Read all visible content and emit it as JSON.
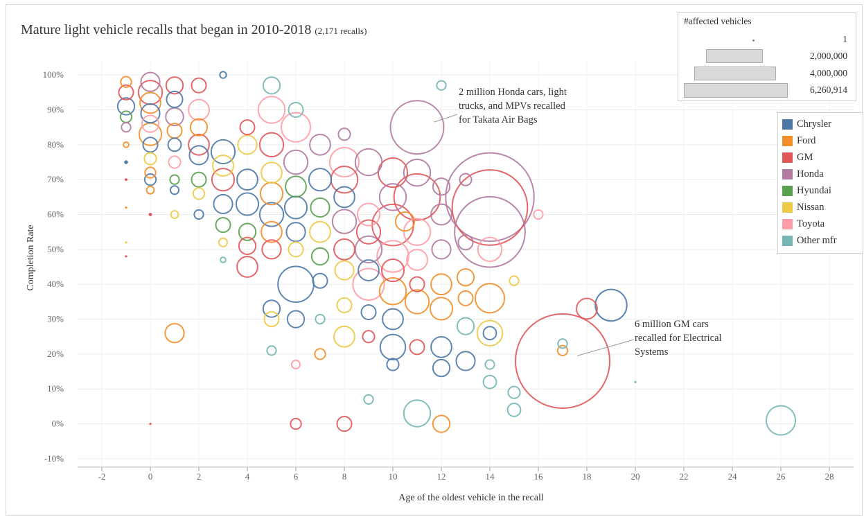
{
  "title": {
    "main": "Mature light vehicle recalls that began in 2010-2018",
    "count": "(2,171 recalls)"
  },
  "size_legend": {
    "title": "#affected vehicles",
    "entries": [
      "1",
      "2,000,000",
      "4,000,000",
      "6,260,914"
    ],
    "values": [
      1,
      2000000,
      4000000,
      6260914
    ]
  },
  "color_legend": [
    {
      "label": "Chrysler",
      "color": "#4e79a7"
    },
    {
      "label": "Ford",
      "color": "#f28e2b"
    },
    {
      "label": "GM",
      "color": "#e15759"
    },
    {
      "label": "Honda",
      "color": "#b07aa1"
    },
    {
      "label": "Hyundai",
      "color": "#59a14f"
    },
    {
      "label": "Nissan",
      "color": "#edc948"
    },
    {
      "label": "Toyota",
      "color": "#ff9da7"
    },
    {
      "label": "Other mfr",
      "color": "#76b7b2"
    }
  ],
  "annotations": [
    {
      "lines": [
        "2 million Honda cars, light",
        "trucks, and MPVs recalled",
        "for  Takata Air Bags"
      ]
    },
    {
      "lines": [
        "6 million GM  cars",
        "recalled for Electrical",
        "Systems"
      ]
    }
  ],
  "chart_data": {
    "type": "scatter",
    "xlabel": "Age of the oldest vehicle in the recall",
    "ylabel": "Completion Rate",
    "xlim": [
      -3,
      29
    ],
    "ylim": [
      -12,
      104
    ],
    "x_ticks": [
      -2,
      0,
      2,
      4,
      6,
      8,
      10,
      12,
      14,
      16,
      18,
      20,
      22,
      24,
      26,
      28
    ],
    "x_tick_labels": [
      "-2",
      "0",
      "2",
      "4",
      "6",
      "8",
      "10",
      "12",
      "14",
      "16",
      "18",
      "20",
      "22",
      "24",
      "26",
      "28"
    ],
    "y_ticks": [
      -10,
      0,
      10,
      20,
      30,
      40,
      50,
      60,
      70,
      80,
      90,
      100
    ],
    "y_tick_labels": [
      "-10%",
      "0%",
      "10%",
      "20%",
      "30%",
      "40%",
      "50%",
      "60%",
      "70%",
      "80%",
      "90%",
      "100%"
    ],
    "grid": true,
    "size_encoding": "#affected vehicles",
    "color_encoding": "manufacturer",
    "points": [
      {
        "x": -1,
        "y": 98,
        "mfr": "Ford",
        "n": 80000
      },
      {
        "x": -1,
        "y": 95,
        "mfr": "GM",
        "n": 150000
      },
      {
        "x": -1,
        "y": 91,
        "mfr": "Chrysler",
        "n": 200000
      },
      {
        "x": -1,
        "y": 88,
        "mfr": "Hyundai",
        "n": 90000
      },
      {
        "x": -1,
        "y": 85,
        "mfr": "Honda",
        "n": 60000
      },
      {
        "x": -1,
        "y": 80,
        "mfr": "Ford",
        "n": 20000
      },
      {
        "x": -1,
        "y": 75,
        "mfr": "Chrysler",
        "n": 10000
      },
      {
        "x": -1,
        "y": 70,
        "mfr": "GM",
        "n": 5000
      },
      {
        "x": -1,
        "y": 62,
        "mfr": "Ford",
        "n": 3000
      },
      {
        "x": -1,
        "y": 52,
        "mfr": "Nissan",
        "n": 500
      },
      {
        "x": -1,
        "y": 48,
        "mfr": "GM",
        "n": 500
      },
      {
        "x": 0,
        "y": 98,
        "mfr": "Honda",
        "n": 250000
      },
      {
        "x": 0,
        "y": 95,
        "mfr": "GM",
        "n": 400000
      },
      {
        "x": 0,
        "y": 92,
        "mfr": "Ford",
        "n": 300000
      },
      {
        "x": 0,
        "y": 89,
        "mfr": "Chrysler",
        "n": 250000
      },
      {
        "x": 0,
        "y": 86,
        "mfr": "Toyota",
        "n": 200000
      },
      {
        "x": 0,
        "y": 83,
        "mfr": "Ford",
        "n": 350000
      },
      {
        "x": 0,
        "y": 80,
        "mfr": "Chrysler",
        "n": 150000
      },
      {
        "x": 0,
        "y": 76,
        "mfr": "Nissan",
        "n": 100000
      },
      {
        "x": 0,
        "y": 72,
        "mfr": "Ford",
        "n": 80000
      },
      {
        "x": 0,
        "y": 70,
        "mfr": "Chrysler",
        "n": 90000
      },
      {
        "x": 0,
        "y": 67,
        "mfr": "Ford",
        "n": 40000
      },
      {
        "x": 0,
        "y": 60,
        "mfr": "GM",
        "n": 8000
      },
      {
        "x": 0,
        "y": 0,
        "mfr": "GM",
        "n": 2000
      },
      {
        "x": 1,
        "y": 97,
        "mfr": "GM",
        "n": 200000
      },
      {
        "x": 1,
        "y": 93,
        "mfr": "Chrysler",
        "n": 180000
      },
      {
        "x": 1,
        "y": 88,
        "mfr": "Honda",
        "n": 220000
      },
      {
        "x": 1,
        "y": 84,
        "mfr": "Ford",
        "n": 150000
      },
      {
        "x": 1,
        "y": 80,
        "mfr": "Chrysler",
        "n": 120000
      },
      {
        "x": 1,
        "y": 75,
        "mfr": "Toyota",
        "n": 100000
      },
      {
        "x": 1,
        "y": 70,
        "mfr": "Hyundai",
        "n": 60000
      },
      {
        "x": 1,
        "y": 67,
        "mfr": "Chrysler",
        "n": 50000
      },
      {
        "x": 1,
        "y": 60,
        "mfr": "Nissan",
        "n": 40000
      },
      {
        "x": 1,
        "y": 26,
        "mfr": "Ford",
        "n": 250000
      },
      {
        "x": 2,
        "y": 97,
        "mfr": "GM",
        "n": 150000
      },
      {
        "x": 2,
        "y": 90,
        "mfr": "Toyota",
        "n": 300000
      },
      {
        "x": 2,
        "y": 85,
        "mfr": "Ford",
        "n": 200000
      },
      {
        "x": 2,
        "y": 80,
        "mfr": "GM",
        "n": 300000
      },
      {
        "x": 2,
        "y": 77,
        "mfr": "Chrysler",
        "n": 250000
      },
      {
        "x": 2,
        "y": 70,
        "mfr": "Hyundai",
        "n": 150000
      },
      {
        "x": 2,
        "y": 66,
        "mfr": "Nissan",
        "n": 90000
      },
      {
        "x": 2,
        "y": 60,
        "mfr": "Chrysler",
        "n": 60000
      },
      {
        "x": 3,
        "y": 100,
        "mfr": "Chrysler",
        "n": 30000
      },
      {
        "x": 3,
        "y": 78,
        "mfr": "Chrysler",
        "n": 400000
      },
      {
        "x": 3,
        "y": 74,
        "mfr": "Nissan",
        "n": 300000
      },
      {
        "x": 3,
        "y": 70,
        "mfr": "GM",
        "n": 350000
      },
      {
        "x": 3,
        "y": 63,
        "mfr": "Chrysler",
        "n": 250000
      },
      {
        "x": 3,
        "y": 57,
        "mfr": "Hyundai",
        "n": 150000
      },
      {
        "x": 3,
        "y": 52,
        "mfr": "Nissan",
        "n": 50000
      },
      {
        "x": 3,
        "y": 47,
        "mfr": "Other mfr",
        "n": 20000
      },
      {
        "x": 4,
        "y": 85,
        "mfr": "GM",
        "n": 150000
      },
      {
        "x": 4,
        "y": 80,
        "mfr": "Nissan",
        "n": 250000
      },
      {
        "x": 4,
        "y": 70,
        "mfr": "Chrysler",
        "n": 300000
      },
      {
        "x": 4,
        "y": 63,
        "mfr": "Chrysler",
        "n": 350000
      },
      {
        "x": 4,
        "y": 55,
        "mfr": "Hyundai",
        "n": 200000
      },
      {
        "x": 4,
        "y": 51,
        "mfr": "GM",
        "n": 200000
      },
      {
        "x": 4,
        "y": 45,
        "mfr": "GM",
        "n": 300000
      },
      {
        "x": 5,
        "y": 97,
        "mfr": "Other mfr",
        "n": 200000
      },
      {
        "x": 5,
        "y": 90,
        "mfr": "Toyota",
        "n": 500000
      },
      {
        "x": 5,
        "y": 80,
        "mfr": "GM",
        "n": 400000
      },
      {
        "x": 5,
        "y": 72,
        "mfr": "Nissan",
        "n": 300000
      },
      {
        "x": 5,
        "y": 66,
        "mfr": "Ford",
        "n": 350000
      },
      {
        "x": 5,
        "y": 60,
        "mfr": "Chrysler",
        "n": 400000
      },
      {
        "x": 5,
        "y": 55,
        "mfr": "Ford",
        "n": 300000
      },
      {
        "x": 5,
        "y": 50,
        "mfr": "GM",
        "n": 250000
      },
      {
        "x": 5,
        "y": 33,
        "mfr": "Chrysler",
        "n": 200000
      },
      {
        "x": 5,
        "y": 30,
        "mfr": "Nissan",
        "n": 150000
      },
      {
        "x": 5,
        "y": 21,
        "mfr": "Other mfr",
        "n": 60000
      },
      {
        "x": 6,
        "y": 90,
        "mfr": "Other mfr",
        "n": 150000
      },
      {
        "x": 6,
        "y": 85,
        "mfr": "Toyota",
        "n": 600000
      },
      {
        "x": 6,
        "y": 75,
        "mfr": "Honda",
        "n": 400000
      },
      {
        "x": 6,
        "y": 68,
        "mfr": "Hyundai",
        "n": 300000
      },
      {
        "x": 6,
        "y": 62,
        "mfr": "Chrysler",
        "n": 350000
      },
      {
        "x": 6,
        "y": 55,
        "mfr": "Chrysler",
        "n": 250000
      },
      {
        "x": 6,
        "y": 50,
        "mfr": "Nissan",
        "n": 150000
      },
      {
        "x": 6,
        "y": 40,
        "mfr": "Chrysler",
        "n": 900000
      },
      {
        "x": 6,
        "y": 30,
        "mfr": "Chrysler",
        "n": 200000
      },
      {
        "x": 6,
        "y": 17,
        "mfr": "Toyota",
        "n": 50000
      },
      {
        "x": 6,
        "y": 0,
        "mfr": "GM",
        "n": 80000
      },
      {
        "x": 7,
        "y": 80,
        "mfr": "Honda",
        "n": 300000
      },
      {
        "x": 7,
        "y": 70,
        "mfr": "Chrysler",
        "n": 350000
      },
      {
        "x": 7,
        "y": 62,
        "mfr": "Hyundai",
        "n": 250000
      },
      {
        "x": 7,
        "y": 55,
        "mfr": "Nissan",
        "n": 300000
      },
      {
        "x": 7,
        "y": 48,
        "mfr": "Hyundai",
        "n": 200000
      },
      {
        "x": 7,
        "y": 41,
        "mfr": "Chrysler",
        "n": 150000
      },
      {
        "x": 7,
        "y": 30,
        "mfr": "Other mfr",
        "n": 60000
      },
      {
        "x": 7,
        "y": 20,
        "mfr": "Ford",
        "n": 80000
      },
      {
        "x": 8,
        "y": 83,
        "mfr": "Honda",
        "n": 100000
      },
      {
        "x": 8,
        "y": 75,
        "mfr": "Toyota",
        "n": 600000
      },
      {
        "x": 8,
        "y": 70,
        "mfr": "GM",
        "n": 500000
      },
      {
        "x": 8,
        "y": 65,
        "mfr": "Chrysler",
        "n": 300000
      },
      {
        "x": 8,
        "y": 58,
        "mfr": "Honda",
        "n": 400000
      },
      {
        "x": 8,
        "y": 50,
        "mfr": "GM",
        "n": 300000
      },
      {
        "x": 8,
        "y": 44,
        "mfr": "Nissan",
        "n": 250000
      },
      {
        "x": 8,
        "y": 34,
        "mfr": "Nissan",
        "n": 150000
      },
      {
        "x": 8,
        "y": 25,
        "mfr": "Nissan",
        "n": 300000
      },
      {
        "x": 8,
        "y": 0,
        "mfr": "GM",
        "n": 150000
      },
      {
        "x": 9,
        "y": 75,
        "mfr": "Honda",
        "n": 500000
      },
      {
        "x": 9,
        "y": 60,
        "mfr": "Toyota",
        "n": 350000
      },
      {
        "x": 9,
        "y": 55,
        "mfr": "GM",
        "n": 400000
      },
      {
        "x": 9,
        "y": 50,
        "mfr": "Honda",
        "n": 500000
      },
      {
        "x": 9,
        "y": 44,
        "mfr": "Chrysler",
        "n": 300000
      },
      {
        "x": 9,
        "y": 40,
        "mfr": "Toyota",
        "n": 700000
      },
      {
        "x": 9,
        "y": 32,
        "mfr": "Chrysler",
        "n": 150000
      },
      {
        "x": 9,
        "y": 25,
        "mfr": "GM",
        "n": 100000
      },
      {
        "x": 9,
        "y": 7,
        "mfr": "Other mfr",
        "n": 60000
      },
      {
        "x": 10,
        "y": 72,
        "mfr": "GM",
        "n": 600000
      },
      {
        "x": 10,
        "y": 65,
        "mfr": "Honda",
        "n": 500000
      },
      {
        "x": 10,
        "y": 57,
        "mfr": "GM",
        "n": 1200000
      },
      {
        "x": 10,
        "y": 48,
        "mfr": "Toyota",
        "n": 700000
      },
      {
        "x": 10,
        "y": 44,
        "mfr": "GM",
        "n": 350000
      },
      {
        "x": 10,
        "y": 38,
        "mfr": "Ford",
        "n": 500000
      },
      {
        "x": 10,
        "y": 30,
        "mfr": "Chrysler",
        "n": 300000
      },
      {
        "x": 10,
        "y": 22,
        "mfr": "Chrysler",
        "n": 450000
      },
      {
        "x": 10,
        "y": 17,
        "mfr": "Chrysler",
        "n": 100000
      },
      {
        "x": 10.5,
        "y": 58,
        "mfr": "Ford",
        "n": 250000
      },
      {
        "x": 11,
        "y": 85,
        "mfr": "Honda",
        "n": 2000000
      },
      {
        "x": 11,
        "y": 72,
        "mfr": "Honda",
        "n": 500000
      },
      {
        "x": 11,
        "y": 65,
        "mfr": "GM",
        "n": 1500000
      },
      {
        "x": 11,
        "y": 55,
        "mfr": "Toyota",
        "n": 500000
      },
      {
        "x": 11,
        "y": 47,
        "mfr": "Toyota",
        "n": 300000
      },
      {
        "x": 11,
        "y": 40,
        "mfr": "GM",
        "n": 150000
      },
      {
        "x": 11,
        "y": 35,
        "mfr": "Ford",
        "n": 400000
      },
      {
        "x": 11,
        "y": 22,
        "mfr": "GM",
        "n": 150000
      },
      {
        "x": 11,
        "y": 3,
        "mfr": "Other mfr",
        "n": 500000
      },
      {
        "x": 12,
        "y": 97,
        "mfr": "Other mfr",
        "n": 60000
      },
      {
        "x": 12,
        "y": 68,
        "mfr": "Honda",
        "n": 200000
      },
      {
        "x": 12,
        "y": 60,
        "mfr": "Honda",
        "n": 300000
      },
      {
        "x": 12,
        "y": 50,
        "mfr": "Honda",
        "n": 250000
      },
      {
        "x": 12,
        "y": 40,
        "mfr": "Ford",
        "n": 300000
      },
      {
        "x": 12,
        "y": 33,
        "mfr": "Ford",
        "n": 350000
      },
      {
        "x": 12,
        "y": 22,
        "mfr": "Chrysler",
        "n": 300000
      },
      {
        "x": 12,
        "y": 16,
        "mfr": "Chrysler",
        "n": 200000
      },
      {
        "x": 12,
        "y": 0,
        "mfr": "Ford",
        "n": 200000
      },
      {
        "x": 13,
        "y": 70,
        "mfr": "Honda",
        "n": 100000
      },
      {
        "x": 13,
        "y": 52,
        "mfr": "Honda",
        "n": 150000
      },
      {
        "x": 13,
        "y": 42,
        "mfr": "Ford",
        "n": 200000
      },
      {
        "x": 13,
        "y": 36,
        "mfr": "Ford",
        "n": 150000
      },
      {
        "x": 13,
        "y": 28,
        "mfr": "Other mfr",
        "n": 200000
      },
      {
        "x": 13,
        "y": 18,
        "mfr": "Chrysler",
        "n": 250000
      },
      {
        "x": 14,
        "y": 65,
        "mfr": "Honda",
        "n": 5500000
      },
      {
        "x": 14,
        "y": 62,
        "mfr": "GM",
        "n": 4000000
      },
      {
        "x": 14,
        "y": 55,
        "mfr": "Honda",
        "n": 3500000
      },
      {
        "x": 14,
        "y": 50,
        "mfr": "Toyota",
        "n": 400000
      },
      {
        "x": 14,
        "y": 36,
        "mfr": "Ford",
        "n": 600000
      },
      {
        "x": 14,
        "y": 26,
        "mfr": "Nissan",
        "n": 450000
      },
      {
        "x": 14,
        "y": 26,
        "mfr": "Chrysler",
        "n": 120000
      },
      {
        "x": 14,
        "y": 17,
        "mfr": "Other mfr",
        "n": 60000
      },
      {
        "x": 14,
        "y": 12,
        "mfr": "Other mfr",
        "n": 120000
      },
      {
        "x": 15,
        "y": 41,
        "mfr": "Nissan",
        "n": 60000
      },
      {
        "x": 15,
        "y": 9,
        "mfr": "Other mfr",
        "n": 100000
      },
      {
        "x": 15,
        "y": 4,
        "mfr": "Other mfr",
        "n": 120000
      },
      {
        "x": 16,
        "y": 60,
        "mfr": "Toyota",
        "n": 60000
      },
      {
        "x": 17,
        "y": 18,
        "mfr": "GM",
        "n": 6260914
      },
      {
        "x": 17,
        "y": 23,
        "mfr": "Other mfr",
        "n": 60000
      },
      {
        "x": 17,
        "y": 21,
        "mfr": "Ford",
        "n": 70000
      },
      {
        "x": 18,
        "y": 33,
        "mfr": "GM",
        "n": 300000
      },
      {
        "x": 19,
        "y": 34,
        "mfr": "Chrysler",
        "n": 700000
      },
      {
        "x": 20,
        "y": 12,
        "mfr": "Other mfr",
        "n": 2000
      },
      {
        "x": 26,
        "y": 1,
        "mfr": "Other mfr",
        "n": 600000
      }
    ]
  }
}
